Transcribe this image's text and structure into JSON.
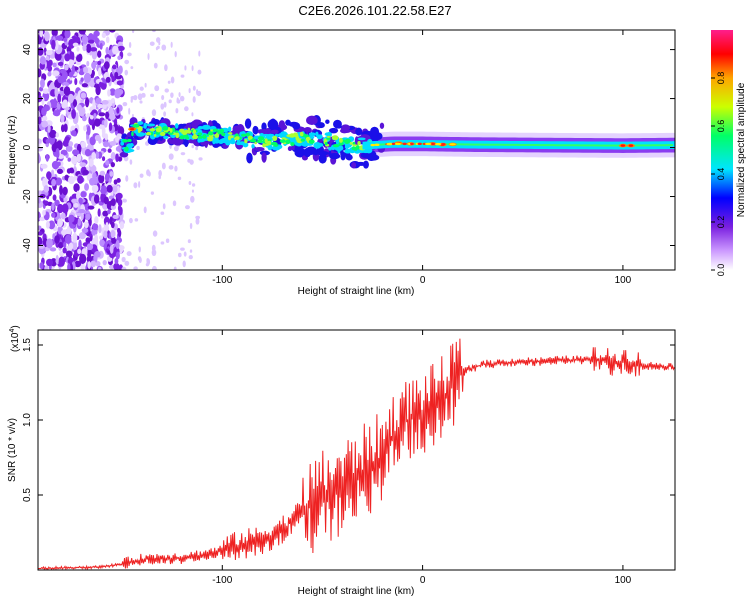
{
  "title": "C2E6.2026.101.22.58.E27",
  "chart_data": [
    {
      "type": "heatmap",
      "xlabel": "Height of straight line (km)",
      "ylabel": "Frequency (Hz)",
      "xlim": [
        -192,
        126
      ],
      "ylim": [
        -50,
        48
      ],
      "xticks": [
        -100,
        0,
        100
      ],
      "yticks": [
        -40,
        -20,
        0,
        20,
        40
      ],
      "colorbar": {
        "label": "Normalized spectral amplitude",
        "range": [
          0,
          1
        ],
        "ticks": [
          "0.0",
          "0.2",
          "0.4",
          "0.6",
          "0.8"
        ],
        "colors": [
          "#ffffff",
          "#cc99ff",
          "#7a1fe0",
          "#0000ff",
          "#00e5ff",
          "#00ff66",
          "#ccff00",
          "#ffa500",
          "#ff0000",
          "#ff1e8c"
        ]
      },
      "ridge": [
        {
          "x": -145,
          "f": 7.5
        },
        {
          "x": -125,
          "f": 6
        },
        {
          "x": -100,
          "f": 5
        },
        {
          "x": -75,
          "f": 2.5
        },
        {
          "x": -55,
          "f": 4
        },
        {
          "x": -35,
          "f": 0.5
        },
        {
          "x": -15,
          "f": 1.5
        },
        {
          "x": 0,
          "f": 1.5
        },
        {
          "x": 25,
          "f": 1.2
        },
        {
          "x": 60,
          "f": 1.0
        },
        {
          "x": 100,
          "f": 0.8
        },
        {
          "x": 126,
          "f": 1.0
        }
      ]
    },
    {
      "type": "line",
      "xlabel": "Height of straight line (km)",
      "ylabel": "SNR (10 * v/v)",
      "y_scale_label": "(x10",
      "y_scale_exp": "4",
      "xlim": [
        -192,
        126
      ],
      "ylim": [
        0,
        1.6
      ],
      "xticks": [
        -100,
        0,
        100
      ],
      "yticks": [
        0.5,
        1.0,
        1.5
      ],
      "series": [
        {
          "name": "SNR",
          "color": "#ee2222",
          "x": [
            -192,
            -160,
            -150,
            -140,
            -130,
            -120,
            -110,
            -100,
            -90,
            -80,
            -70,
            -60,
            -50,
            -40,
            -30,
            -20,
            -15,
            -10,
            0,
            10,
            20,
            30,
            40,
            50,
            60,
            70,
            80,
            90,
            95,
            100,
            105,
            110,
            120,
            126
          ],
          "y": [
            0.01,
            0.02,
            0.04,
            0.07,
            0.08,
            0.08,
            0.1,
            0.13,
            0.17,
            0.2,
            0.27,
            0.38,
            0.48,
            0.55,
            0.65,
            0.75,
            0.9,
            0.98,
            1.05,
            1.15,
            1.32,
            1.37,
            1.38,
            1.39,
            1.39,
            1.4,
            1.4,
            1.4,
            1.38,
            1.4,
            1.38,
            1.36,
            1.36,
            1.35
          ]
        }
      ]
    }
  ]
}
